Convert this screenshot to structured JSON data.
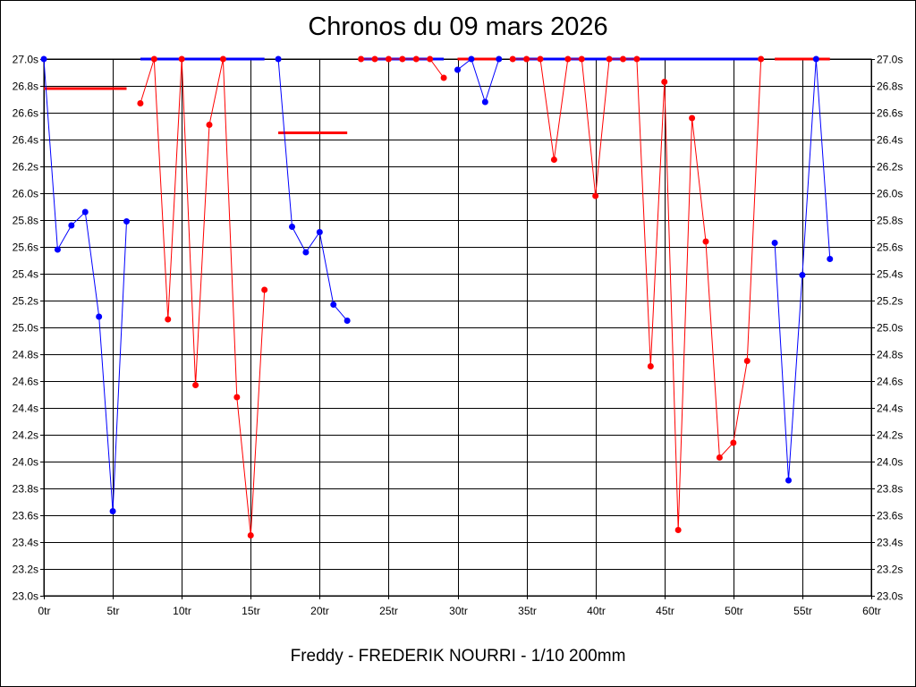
{
  "chart_data": {
    "type": "line",
    "title": "Chronos du 09 mars 2026",
    "footer": "Freddy - FREDERIK NOURRI - 1/10 200mm",
    "x_range": [
      0,
      60
    ],
    "y_range": [
      23.0,
      27.0
    ],
    "x_ticks": [
      {
        "v": 0,
        "label": "0tr"
      },
      {
        "v": 5,
        "label": "5tr"
      },
      {
        "v": 10,
        "label": "10tr"
      },
      {
        "v": 15,
        "label": "15tr"
      },
      {
        "v": 20,
        "label": "20tr"
      },
      {
        "v": 25,
        "label": "25tr"
      },
      {
        "v": 30,
        "label": "30tr"
      },
      {
        "v": 35,
        "label": "35tr"
      },
      {
        "v": 40,
        "label": "40tr"
      },
      {
        "v": 45,
        "label": "45tr"
      },
      {
        "v": 50,
        "label": "50tr"
      },
      {
        "v": 55,
        "label": "55tr"
      },
      {
        "v": 60,
        "label": "60tr"
      }
    ],
    "y_ticks": [
      {
        "v": 23.0,
        "label": "23.0s"
      },
      {
        "v": 23.2,
        "label": "23.2s"
      },
      {
        "v": 23.4,
        "label": "23.4s"
      },
      {
        "v": 23.6,
        "label": "23.6s"
      },
      {
        "v": 23.8,
        "label": "23.8s"
      },
      {
        "v": 24.0,
        "label": "24.0s"
      },
      {
        "v": 24.2,
        "label": "24.2s"
      },
      {
        "v": 24.4,
        "label": "24.4s"
      },
      {
        "v": 24.6,
        "label": "24.6s"
      },
      {
        "v": 24.8,
        "label": "24.8s"
      },
      {
        "v": 25.0,
        "label": "25.0s"
      },
      {
        "v": 25.2,
        "label": "25.2s"
      },
      {
        "v": 25.4,
        "label": "25.4s"
      },
      {
        "v": 25.6,
        "label": "25.6s"
      },
      {
        "v": 25.8,
        "label": "25.8s"
      },
      {
        "v": 26.0,
        "label": "26.0s"
      },
      {
        "v": 26.2,
        "label": "26.2s"
      },
      {
        "v": 26.4,
        "label": "26.4s"
      },
      {
        "v": 26.6,
        "label": "26.6s"
      },
      {
        "v": 26.8,
        "label": "26.8s"
      },
      {
        "v": 27.0,
        "label": "27.0s"
      }
    ],
    "grid": true,
    "colors": {
      "blue": "#0000ff",
      "red": "#ff0000"
    },
    "segments": [
      {
        "color": "blue",
        "points": [
          [
            0,
            27.0
          ],
          [
            1,
            25.58
          ],
          [
            2,
            25.76
          ],
          [
            3,
            25.86
          ],
          [
            4,
            25.08
          ],
          [
            5,
            23.63
          ],
          [
            6,
            25.79
          ]
        ],
        "avg": null
      },
      {
        "color": "red",
        "points": [
          [
            7,
            26.67
          ],
          [
            8,
            27.0
          ],
          [
            9,
            25.06
          ],
          [
            10,
            27.0
          ],
          [
            11,
            24.57
          ],
          [
            12,
            26.51
          ],
          [
            13,
            27.0
          ],
          [
            14,
            24.48
          ],
          [
            15,
            23.45
          ],
          [
            16,
            25.28
          ]
        ],
        "avg": null
      },
      {
        "color": "blue",
        "points": [
          [
            17,
            27.0
          ],
          [
            18,
            25.75
          ],
          [
            19,
            25.56
          ],
          [
            20,
            25.71
          ],
          [
            21,
            25.17
          ],
          [
            22,
            25.05
          ]
        ],
        "avg": null
      },
      {
        "color": "red",
        "points": [
          [
            23,
            27.0
          ],
          [
            24,
            27.0
          ],
          [
            25,
            27.0
          ],
          [
            26,
            27.0
          ],
          [
            27,
            27.0
          ],
          [
            28,
            27.0
          ],
          [
            29,
            26.86
          ]
        ],
        "avg": null
      },
      {
        "color": "blue",
        "points": [
          [
            30,
            26.92
          ],
          [
            31,
            27.0
          ],
          [
            32,
            26.68
          ],
          [
            33,
            27.0
          ]
        ],
        "avg": null
      },
      {
        "color": "red",
        "points": [
          [
            34,
            27.0
          ],
          [
            35,
            27.0
          ],
          [
            36,
            27.0
          ],
          [
            37,
            26.25
          ],
          [
            38,
            27.0
          ],
          [
            39,
            27.0
          ],
          [
            40,
            25.98
          ],
          [
            41,
            27.0
          ],
          [
            42,
            27.0
          ],
          [
            43,
            27.0
          ],
          [
            44,
            24.71
          ],
          [
            45,
            26.83
          ],
          [
            46,
            23.49
          ],
          [
            47,
            26.56
          ],
          [
            48,
            25.64
          ],
          [
            49,
            24.03
          ],
          [
            50,
            24.14
          ],
          [
            51,
            24.75
          ],
          [
            52,
            27.0
          ]
        ],
        "avg": null
      },
      {
        "color": "blue",
        "points": [
          [
            53,
            25.63
          ],
          [
            54,
            23.86
          ],
          [
            55,
            25.39
          ],
          [
            56,
            27.0
          ],
          [
            57,
            25.51
          ]
        ],
        "avg": null
      }
    ],
    "averages": [
      {
        "color": "red",
        "x": [
          0,
          6
        ],
        "y": 26.78
      },
      {
        "color": "blue",
        "x": [
          7,
          16
        ],
        "y": 27.0
      },
      {
        "color": "red",
        "x": [
          17,
          22
        ],
        "y": 26.45
      },
      {
        "color": "blue",
        "x": [
          23,
          29
        ],
        "y": 27.0
      },
      {
        "color": "red",
        "x": [
          30,
          33
        ],
        "y": 27.0
      },
      {
        "color": "blue",
        "x": [
          34,
          52
        ],
        "y": 27.0
      },
      {
        "color": "red",
        "x": [
          53,
          57
        ],
        "y": 27.0
      }
    ]
  }
}
